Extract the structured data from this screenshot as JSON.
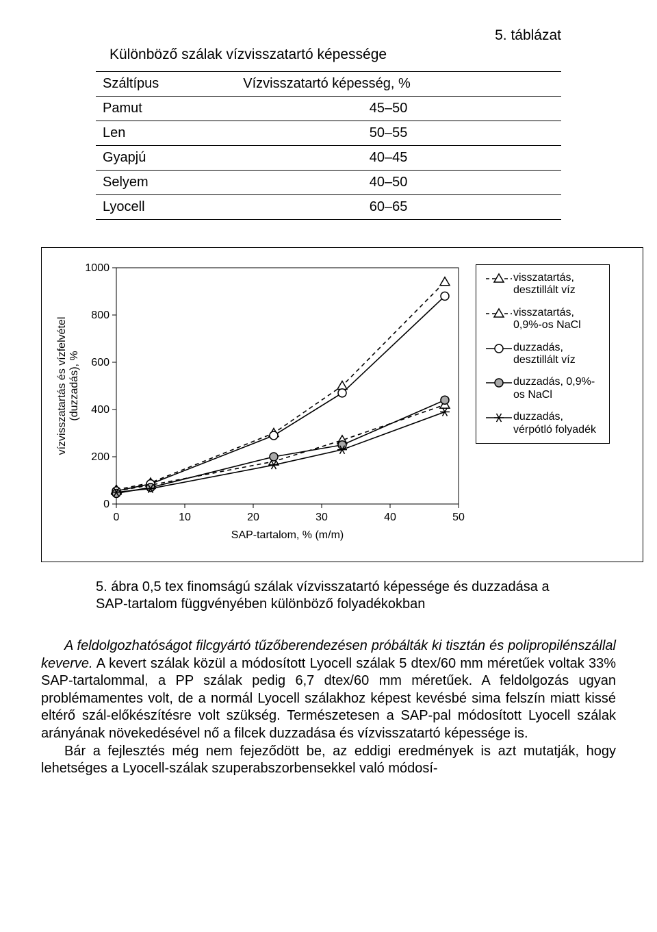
{
  "table": {
    "number": "5. táblázat",
    "title": "Különböző szálak vízvisszatartó képessége",
    "columns": [
      "Száltípus",
      "Vízvisszatartó képesség, %"
    ],
    "rows": [
      [
        "Pamut",
        "45–50"
      ],
      [
        "Len",
        "50–55"
      ],
      [
        "Gyapjú",
        "40–45"
      ],
      [
        "Selyem",
        "40–50"
      ],
      [
        "Lyocell",
        "60–65"
      ]
    ]
  },
  "chart": {
    "type": "line",
    "xlabel": "SAP-tartalom, % (m/m)",
    "ylabel": "vízvisszatartás és vízfelvétel\n(duzzadás), %",
    "xlim": [
      0,
      50
    ],
    "xtick_step": 10,
    "ylim": [
      0,
      1000
    ],
    "ytick_step": 200,
    "background_color": "#ffffff",
    "axis_color": "#000000",
    "tick_font_size": 16,
    "label_font_size": 16,
    "series": [
      {
        "name": "visszatartás, desztillált víz",
        "marker": "triangle-open",
        "line_style": "dashed",
        "color": "#000000",
        "fill": "#ffffff",
        "x": [
          0,
          5,
          23,
          33,
          48
        ],
        "y": [
          60,
          90,
          300,
          500,
          940
        ]
      },
      {
        "name": "visszatartás, 0,9%-os NaCl",
        "marker": "triangle-open",
        "line_style": "dashed",
        "color": "#000000",
        "fill": "#ffffff",
        "x": [
          0,
          5,
          23,
          33,
          48
        ],
        "y": [
          55,
          80,
          180,
          270,
          420
        ]
      },
      {
        "name": "duzzadás, desztillált víz",
        "marker": "circle-open",
        "line_style": "solid",
        "color": "#000000",
        "fill": "#ffffff",
        "x": [
          0,
          5,
          23,
          33,
          48
        ],
        "y": [
          55,
          85,
          290,
          470,
          880
        ]
      },
      {
        "name": "duzzadás, 0,9%-os NaCl",
        "marker": "circle-filled",
        "line_style": "solid",
        "color": "#000000",
        "fill": "#a9a9a9",
        "x": [
          0,
          5,
          23,
          33,
          48
        ],
        "y": [
          45,
          70,
          200,
          250,
          440
        ]
      },
      {
        "name": "duzzadás, vérpótló folyadék",
        "marker": "asterisk",
        "line_style": "solid",
        "color": "#000000",
        "fill": "#000000",
        "x": [
          0,
          5,
          23,
          33,
          48
        ],
        "y": [
          50,
          65,
          165,
          230,
          390
        ]
      }
    ],
    "legend": [
      "visszatartás, desztillált víz",
      "visszatartás, 0,9%-os NaCl",
      "duzzadás, desztillált víz",
      "duzzadás, 0,9%-os NaCl",
      "duzzadás, vérpótló folyadék"
    ]
  },
  "caption": "5. ábra 0,5 tex finomságú szálak vízvisszatartó képessége és duzzadása a SAP-tartalom függvényében különböző folyadékokban",
  "paragraphs": {
    "p1_italic": "A feldolgozhatóságot filcgyártó tűzőberendezésen próbálták ki tisztán és polipropilénszállal keverve.",
    "p1_rest": " A kevert szálak közül a módosított Lyocell szálak 5 dtex/60 mm méretűek voltak 33% SAP-tartalommal, a PP szálak pedig 6,7 dtex/60 mm méretűek. A feldolgozás ugyan problémamentes volt, de a normál Lyocell szálakhoz képest kevésbé sima felszín miatt kissé eltérő szál-előkészítésre volt szükség. Természetesen a SAP-pal módosított Lyocell szálak arányának növekedésével nő a filcek duzzadása és vízvisszatartó képessége is.",
    "p2": "Bár a fejlesztés még nem fejeződött be, az eddigi eredmények is azt mutatják, hogy lehetséges a Lyocell-szálak szuperabszorbensekkel való módosí-"
  }
}
